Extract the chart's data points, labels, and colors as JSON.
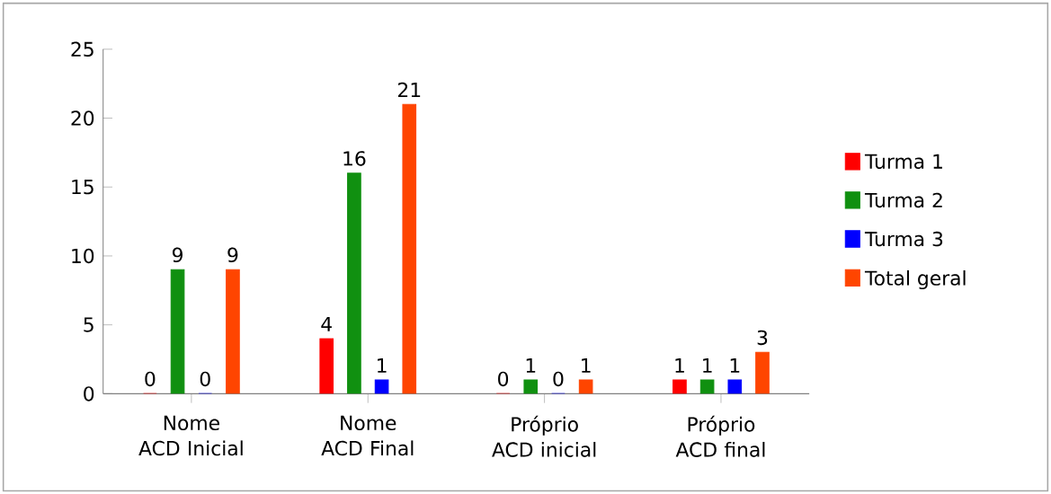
{
  "chart_data": {
    "type": "bar",
    "categories": [
      "Nome ACD Inicial",
      "Nome ACD Final",
      "Próprio ACD inicial",
      "Próprio ACD final"
    ],
    "series": [
      {
        "name": "Turma 1",
        "color": "#ff0000",
        "values": [
          0,
          4,
          0,
          1
        ]
      },
      {
        "name": "Turma 2",
        "color": "#109010",
        "values": [
          9,
          16,
          1,
          1
        ]
      },
      {
        "name": "Turma 3",
        "color": "#0000ff",
        "values": [
          0,
          1,
          0,
          1
        ]
      },
      {
        "name": "Total geral",
        "color": "#ff4500",
        "values": [
          9,
          21,
          1,
          3
        ]
      }
    ],
    "ylim": [
      0,
      25
    ],
    "yticks": [
      0,
      5,
      10,
      15,
      20,
      25
    ],
    "data_labels": true,
    "legend": "right",
    "grid": false
  }
}
